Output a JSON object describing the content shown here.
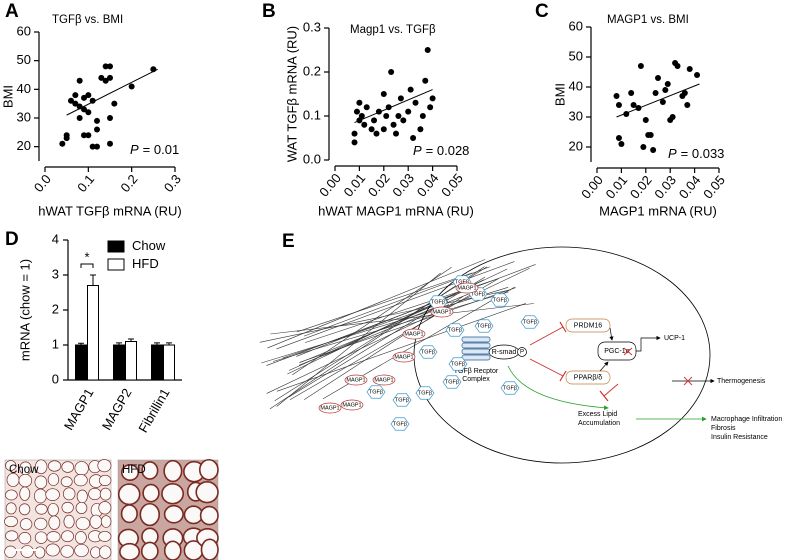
{
  "chart_data": [
    {
      "type": "scatter",
      "panel": "A",
      "title": "TGFβ vs. BMI",
      "x_label": "hWAT TGFβ mRNA (RU)",
      "y_label": "BMI",
      "x": [
        0.04,
        0.05,
        0.05,
        0.06,
        0.07,
        0.07,
        0.08,
        0.08,
        0.09,
        0.09,
        0.09,
        0.1,
        0.1,
        0.1,
        0.11,
        0.11,
        0.12,
        0.12,
        0.13,
        0.14,
        0.14,
        0.15,
        0.15,
        0.15,
        0.16,
        0.15,
        0.2,
        0.25,
        0.08,
        0.12
      ],
      "values": [
        21,
        23,
        24,
        36,
        38,
        35,
        34,
        30,
        37,
        33,
        24,
        24,
        38,
        32,
        36,
        20,
        29,
        26,
        44,
        43,
        48,
        48,
        44,
        30,
        35,
        21,
        41,
        47,
        43,
        20
      ],
      "color": "#000000",
      "xlim": [
        0,
        0.3
      ],
      "xticks": [
        {
          "value": 0,
          "label": "0.0"
        },
        0.1,
        0.2,
        0.3
      ],
      "ylim": [
        15,
        60
      ],
      "yticks": [
        20,
        30,
        40,
        50,
        60
      ],
      "fit": {
        "x": [
          0.05,
          0.26
        ],
        "y": [
          31,
          47
        ]
      },
      "annotation": {
        "symbol": "P",
        "text": "= 0.01"
      }
    },
    {
      "type": "scatter",
      "panel": "B",
      "title": "Magp1 vs. TGFβ",
      "x_label": "hWAT MAGP1 mRNA (RU)",
      "y_label": "WAT TGFβ mRNA (RU)",
      "x": [
        0.008,
        0.008,
        0.009,
        0.01,
        0.01,
        0.011,
        0.012,
        0.013,
        0.015,
        0.016,
        0.017,
        0.018,
        0.02,
        0.02,
        0.021,
        0.022,
        0.023,
        0.024,
        0.025,
        0.026,
        0.027,
        0.028,
        0.03,
        0.031,
        0.032,
        0.033,
        0.035,
        0.036,
        0.037,
        0.038,
        0.039,
        0.04
      ],
      "values": [
        0.04,
        0.06,
        0.11,
        0.13,
        0.09,
        0.1,
        0.08,
        0.12,
        0.07,
        0.09,
        0.06,
        0.11,
        0.15,
        0.07,
        0.1,
        0.12,
        0.2,
        0.08,
        0.06,
        0.1,
        0.14,
        0.09,
        0.11,
        0.16,
        0.05,
        0.13,
        0.07,
        0.1,
        0.18,
        0.25,
        0.12,
        0.14
      ],
      "color": "#000000",
      "xlim": [
        0,
        0.05
      ],
      "xticks": [
        {
          "value": 0,
          "label": "0.00"
        },
        0.01,
        0.02,
        0.03,
        0.04,
        0.05
      ],
      "ylim": [
        0,
        0.3
      ],
      "yticks": [
        {
          "value": 0,
          "label": "0.0"
        },
        0.1,
        0.2,
        0.3
      ],
      "fit": {
        "x": [
          0.008,
          0.04
        ],
        "y": [
          0.085,
          0.16
        ]
      },
      "annotation": {
        "symbol": "P",
        "text": "= 0.028"
      }
    },
    {
      "type": "scatter",
      "panel": "C",
      "title": "MAGP1 vs. BMI",
      "x_label": "MAGP1 mRNA (RU)",
      "y_label": "BMI",
      "x": [
        0.008,
        0.009,
        0.009,
        0.01,
        0.012,
        0.014,
        0.015,
        0.017,
        0.018,
        0.019,
        0.02,
        0.021,
        0.022,
        0.023,
        0.024,
        0.025,
        0.027,
        0.028,
        0.029,
        0.03,
        0.031,
        0.032,
        0.033,
        0.035,
        0.036,
        0.037,
        0.038,
        0.041
      ],
      "values": [
        37,
        34,
        23,
        21,
        31,
        38,
        34,
        33,
        47,
        20,
        29,
        24,
        24,
        19,
        38,
        43,
        35,
        39,
        41,
        29,
        30,
        48,
        47,
        37,
        38,
        34,
        46,
        44
      ],
      "color": "#000000",
      "xlim": [
        0,
        0.05
      ],
      "xticks": [
        {
          "value": 0,
          "label": "0.00"
        },
        0.01,
        0.02,
        0.03,
        0.04,
        0.05
      ],
      "ylim": [
        15,
        60
      ],
      "yticks": [
        20,
        30,
        40,
        50,
        60
      ],
      "fit": {
        "x": [
          0.008,
          0.042
        ],
        "y": [
          30,
          41
        ]
      },
      "annotation": {
        "symbol": "P",
        "text": "= 0.033"
      }
    },
    {
      "type": "bar",
      "panel": "D",
      "y_label": "mRNA  (chow = 1)",
      "categories": [
        "MAGP1",
        "MAGP2",
        "Fibrillin1"
      ],
      "series": [
        {
          "name": "Chow",
          "color": "#000000",
          "values": [
            1,
            1,
            1
          ],
          "errors": [
            0.05,
            0.06,
            0.06
          ]
        },
        {
          "name": "HFD",
          "color": "#ffffff",
          "values": [
            2.7,
            1.1,
            1.0
          ],
          "errors": [
            0.3,
            0.07,
            0.06
          ]
        }
      ],
      "ylim": [
        0,
        4
      ],
      "yticks": [
        0,
        1,
        2,
        3,
        4
      ],
      "annotation": "*"
    }
  ],
  "micrographs": {
    "labels": [
      "Chow",
      "HFD"
    ]
  },
  "diagram": {
    "panel": "E",
    "magp1": "MAGP1",
    "tgfb": "TGFβ",
    "receptor": [
      "TGFβ Recptor",
      "Complex"
    ],
    "rsmad": "R-smad",
    "phospho": "P",
    "prdm16": "PRDM16",
    "pgc1a": "PGC-1α",
    "ppar": "PPARβ/δ",
    "ucp1": "UCP-1",
    "thermogenesis": "Thermogenesis",
    "lipid": [
      "Excess Lipid",
      "Accumulation"
    ],
    "outcomes": [
      "Macrophage Infiltration",
      "Fibrosis",
      "Insulin Resistance"
    ]
  }
}
